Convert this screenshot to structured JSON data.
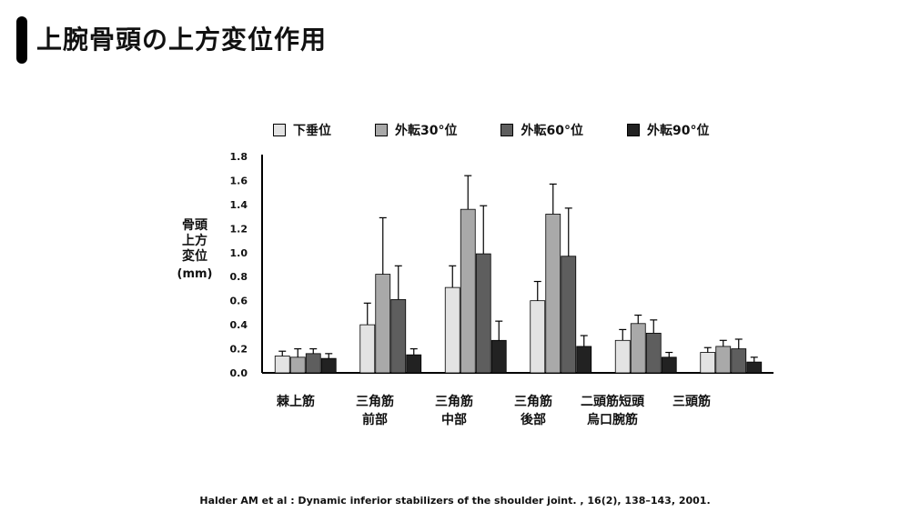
{
  "title": "上腕骨頭の上方変位作用",
  "citation": "Halder AM et al : Dynamic inferior stabilizers of the shoulder joint. , 16(2), 138–143, 2001.",
  "colors": {
    "accent_bar": "#000000",
    "axis": "#000000"
  },
  "chart_data": {
    "type": "bar",
    "ylabel": "骨頭上方変位",
    "ylabel_unit": "(mm)",
    "ylim": [
      0,
      1.8
    ],
    "yticks": [
      "0.0",
      "0.2",
      "0.4",
      "0.6",
      "0.8",
      "1.0",
      "1.2",
      "1.4",
      "1.6",
      "1.8"
    ],
    "legend_position": "top",
    "categories": [
      {
        "line1": "棘上筋",
        "line2": ""
      },
      {
        "line1": "三角筋",
        "line2": "前部"
      },
      {
        "line1": "三角筋",
        "line2": "中部"
      },
      {
        "line1": "三角筋",
        "line2": "後部"
      },
      {
        "line1": "二頭筋短頭",
        "line2": "烏口腕筋"
      },
      {
        "line1": "三頭筋",
        "line2": ""
      }
    ],
    "series": [
      {
        "name": "下垂位",
        "color": "#e3e3e3",
        "values": [
          0.14,
          0.4,
          0.71,
          0.6,
          0.27,
          0.17
        ],
        "errors": [
          0.04,
          0.18,
          0.18,
          0.16,
          0.09,
          0.04
        ]
      },
      {
        "name": "外転30°位",
        "color": "#a9a9a9",
        "values": [
          0.13,
          0.82,
          1.36,
          1.32,
          0.41,
          0.22
        ],
        "errors": [
          0.07,
          0.47,
          0.28,
          0.25,
          0.07,
          0.05
        ]
      },
      {
        "name": "外転60°位",
        "color": "#5e5e5e",
        "values": [
          0.16,
          0.61,
          0.99,
          0.97,
          0.33,
          0.2
        ],
        "errors": [
          0.04,
          0.28,
          0.4,
          0.4,
          0.11,
          0.08
        ]
      },
      {
        "name": "外転90°位",
        "color": "#222222",
        "values": [
          0.12,
          0.15,
          0.27,
          0.22,
          0.13,
          0.09
        ],
        "errors": [
          0.04,
          0.05,
          0.16,
          0.09,
          0.04,
          0.04
        ]
      }
    ]
  }
}
